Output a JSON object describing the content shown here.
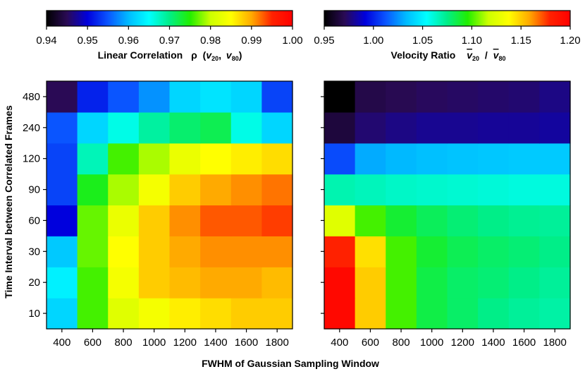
{
  "chart_data": {
    "type": "heatmap",
    "xlabel": "FWHM of Gaussian Sampling Window",
    "ylabel": "Time Interval between Correlated Frames",
    "x_categories": [
      "400",
      "600",
      "800",
      "1000",
      "1200",
      "1400",
      "1600",
      "1800"
    ],
    "y_categories": [
      "10",
      "20",
      "30",
      "60",
      "90",
      "120",
      "240",
      "480"
    ],
    "colormap": [
      "#000000",
      "#2a0a55",
      "#0000dd",
      "#0a55ff",
      "#00bbff",
      "#00ffff",
      "#00ee88",
      "#22ee00",
      "#ccff00",
      "#ffff00",
      "#ffaa00",
      "#ff2200",
      "#ff0000"
    ],
    "panels": [
      {
        "name": "correlation",
        "colorbar": {
          "label": "Linear Correlation",
          "symbol": "ρ",
          "arg_open": "(",
          "var1": "v",
          "sub1": "20",
          "arg_sep": ",",
          "var2": "v",
          "sub2": "80",
          "arg_close": ")",
          "range": [
            0.94,
            1.0
          ],
          "ticks": [
            "0.94",
            "0.95",
            "0.96",
            "0.97",
            "0.98",
            "0.99",
            "1.00"
          ]
        },
        "values": [
          [
            0.962,
            0.976,
            0.982,
            0.984,
            0.986,
            0.987,
            0.988,
            0.988
          ],
          [
            0.964,
            0.976,
            0.984,
            0.988,
            0.989,
            0.99,
            0.99,
            0.989
          ],
          [
            0.961,
            0.977,
            0.985,
            0.988,
            0.99,
            0.991,
            0.991,
            0.991
          ],
          [
            0.95,
            0.977,
            0.983,
            0.988,
            0.991,
            0.993,
            0.993,
            0.994
          ],
          [
            0.954,
            0.974,
            0.979,
            0.984,
            0.988,
            0.99,
            0.991,
            0.992
          ],
          [
            0.954,
            0.968,
            0.976,
            0.979,
            0.983,
            0.985,
            0.986,
            0.987
          ],
          [
            0.955,
            0.962,
            0.966,
            0.969,
            0.971,
            0.972,
            0.966,
            0.962
          ],
          [
            0.945,
            0.952,
            0.955,
            0.958,
            0.962,
            0.963,
            0.962,
            0.954
          ]
        ]
      },
      {
        "name": "velocity-ratio",
        "colorbar": {
          "label": "Velocity Ratio",
          "var1": "v",
          "sub1": "20",
          "sep": "/",
          "var2": "v",
          "sub2": "80",
          "range": [
            0.95,
            1.2
          ],
          "ticks": [
            "0.95",
            "1.00",
            "1.05",
            "1.10",
            "1.15",
            "1.20"
          ]
        },
        "values": [
          [
            1.195,
            1.15,
            1.1,
            1.085,
            1.08,
            1.075,
            1.072,
            1.07
          ],
          [
            1.195,
            1.15,
            1.1,
            1.085,
            1.08,
            1.078,
            1.075,
            1.072
          ],
          [
            1.18,
            1.145,
            1.1,
            1.088,
            1.083,
            1.08,
            1.078,
            1.075
          ],
          [
            1.125,
            1.1,
            1.088,
            1.082,
            1.078,
            1.075,
            1.073,
            1.072
          ],
          [
            1.068,
            1.066,
            1.064,
            1.063,
            1.062,
            1.061,
            1.06,
            1.06
          ],
          [
            1.01,
            1.03,
            1.033,
            1.035,
            1.036,
            1.037,
            1.038,
            1.038
          ],
          [
            0.965,
            0.975,
            0.978,
            0.98,
            0.98,
            0.981,
            0.981,
            0.982
          ],
          [
            0.95,
            0.968,
            0.97,
            0.972,
            0.973,
            0.974,
            0.975,
            0.978
          ]
        ]
      }
    ]
  }
}
